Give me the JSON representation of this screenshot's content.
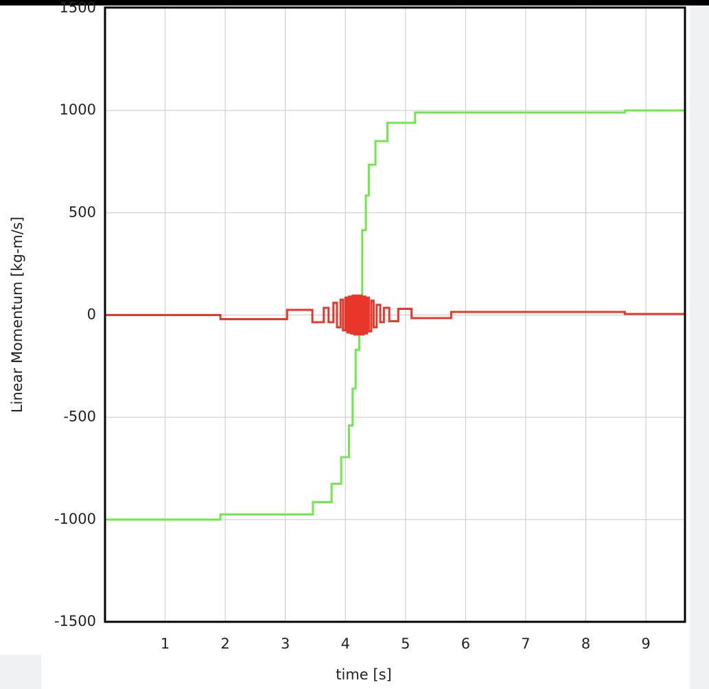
{
  "chart_data": {
    "type": "line",
    "xlabel": "time [s]",
    "ylabel": "Linear Momentum [kg-m/s]",
    "xlim": [
      0,
      9.65
    ],
    "xticks": [
      1,
      2,
      3,
      4,
      5,
      6,
      7,
      8,
      9
    ],
    "ylim": [
      -1500,
      1500
    ],
    "yticks": [
      -1500,
      -1000,
      -500,
      0,
      500,
      1000,
      1500
    ],
    "grid": true,
    "series": [
      {
        "color": "#6fe84a",
        "x": [
          0,
          1.92,
          1.92,
          3.46,
          3.46,
          3.77,
          3.77,
          3.93,
          3.93,
          4.06,
          4.06,
          4.12,
          4.12,
          4.17,
          4.17,
          4.23,
          4.23,
          4.28,
          4.28,
          4.34,
          4.34,
          4.39,
          4.39,
          4.5,
          4.5,
          4.7,
          4.7,
          5.16,
          5.16,
          8.65,
          8.65,
          9.65
        ],
        "values": [
          -1000,
          -1000,
          -975,
          -975,
          -915,
          -915,
          -825,
          -825,
          -695,
          -695,
          -540,
          -540,
          -360,
          -360,
          -170,
          -170,
          70,
          70,
          415,
          415,
          585,
          585,
          735,
          735,
          850,
          850,
          940,
          940,
          990,
          990,
          1000,
          1000
        ]
      },
      {
        "color": "#e8372a",
        "x": [
          0,
          1.92,
          1.92,
          3.03,
          3.03,
          3.45,
          3.45,
          3.64,
          3.64,
          3.72,
          3.72,
          3.8,
          3.8,
          3.86,
          3.86,
          3.92,
          3.92,
          3.96,
          3.96,
          4,
          4,
          4.03,
          4.03,
          4.06,
          4.06,
          4.09,
          4.09,
          4.12,
          4.12,
          4.15,
          4.15,
          4.18,
          4.18,
          4.21,
          4.21,
          4.24,
          4.24,
          4.27,
          4.27,
          4.3,
          4.3,
          4.33,
          4.33,
          4.36,
          4.36,
          4.39,
          4.39,
          4.43,
          4.43,
          4.47,
          4.47,
          4.52,
          4.52,
          4.58,
          4.58,
          4.64,
          4.64,
          4.73,
          4.73,
          4.88,
          4.88,
          5.1,
          5.1,
          5.76,
          5.76,
          8.65,
          8.65,
          9.65
        ],
        "values": [
          0,
          0,
          -20,
          -20,
          25,
          25,
          -35,
          -35,
          35,
          35,
          -35,
          -35,
          60,
          60,
          -60,
          -60,
          75,
          75,
          -75,
          -75,
          85,
          85,
          -85,
          -85,
          90,
          90,
          -90,
          -90,
          95,
          95,
          -95,
          -95,
          95,
          95,
          -95,
          -95,
          95,
          95,
          -95,
          -95,
          90,
          90,
          -90,
          -90,
          85,
          85,
          -80,
          -80,
          70,
          70,
          -60,
          -60,
          50,
          50,
          -35,
          -35,
          35,
          35,
          -30,
          -30,
          30,
          30,
          -15,
          -15,
          15,
          15,
          5,
          5
        ]
      }
    ]
  }
}
